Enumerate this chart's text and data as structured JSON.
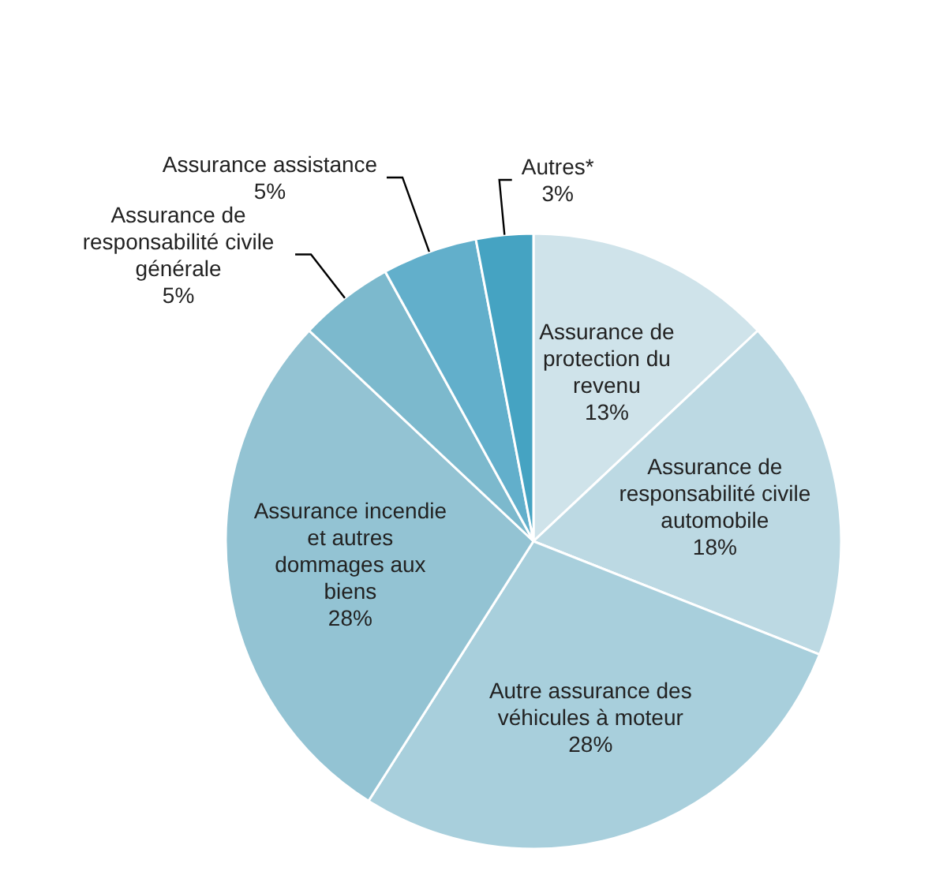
{
  "chart_data": {
    "type": "pie",
    "categories": [
      "Assurance de\nprotection du\nrevenu",
      "Assurance de\nresponsabilité civile\nautomobile",
      "Autre assurance des\nvéhicules à moteur",
      "Assurance incendie\net autres\ndommages aux\nbiens",
      "Assurance de\nresponsabilité civile\ngénérale",
      "Assurance assistance",
      "Autres*"
    ],
    "values": [
      13,
      18,
      28,
      28,
      5,
      5,
      3
    ],
    "value_labels": [
      "13%",
      "18%",
      "28%",
      "28%",
      "5%",
      "5%",
      "3%"
    ],
    "colors": [
      "#cfe3ea",
      "#bcd9e3",
      "#a8cfdc",
      "#93c3d3",
      "#7cb9cd",
      "#62afcb",
      "#45a3c2"
    ]
  }
}
